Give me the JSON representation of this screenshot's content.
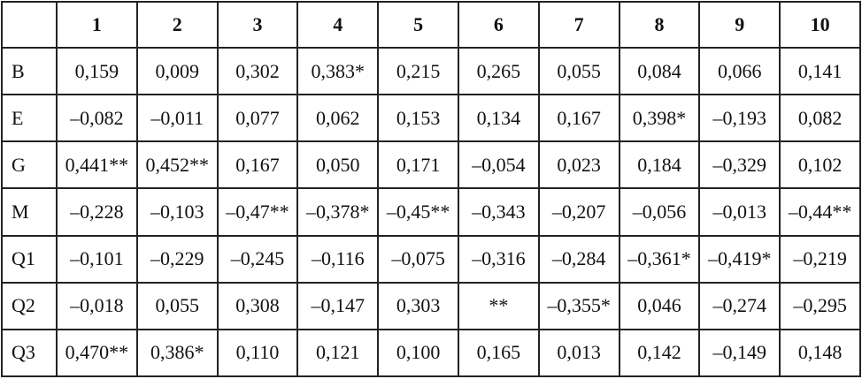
{
  "table": {
    "columns": [
      "1",
      "2",
      "3",
      "4",
      "5",
      "6",
      "7",
      "8",
      "9",
      "10"
    ],
    "rows": [
      [
        "B",
        "0,159",
        "0,009",
        "0,302",
        "0,383*",
        "0,215",
        "0,265",
        "0,055",
        "0,084",
        "0,066",
        "0,141"
      ],
      [
        "E",
        "–0,082",
        "–0,011",
        "0,077",
        "0,062",
        "0,153",
        "0,134",
        "0,167",
        "0,398*",
        "–0,193",
        "0,082"
      ],
      [
        "G",
        "0,441**",
        "0,452**",
        "0,167",
        "0,050",
        "0,171",
        "–0,054",
        "0,023",
        "0,184",
        "–0,329",
        "0,102"
      ],
      [
        "M",
        "–0,228",
        "–0,103",
        "–0,47**",
        "–0,378*",
        "–0,45**",
        "–0,343",
        "–0,207",
        "–0,056",
        "–0,013",
        "–0,44**"
      ],
      [
        "Q1",
        "–0,101",
        "–0,229",
        "–0,245",
        "–0,116",
        "–0,075",
        "–0,316",
        "–0,284",
        "–0,361*",
        "–0,419*",
        "–0,219"
      ],
      [
        "Q2",
        "–0,018",
        "0,055",
        "0,308",
        "–0,147",
        "0,303",
        "**",
        "–0,355*",
        "0,046",
        "–0,274",
        "–0,295"
      ],
      [
        "Q3",
        "0,470**",
        "0,386*",
        "0,110",
        "0,121",
        "0,100",
        "0,165",
        "0,013",
        "0,142",
        "–0,149",
        "0,148"
      ]
    ]
  }
}
